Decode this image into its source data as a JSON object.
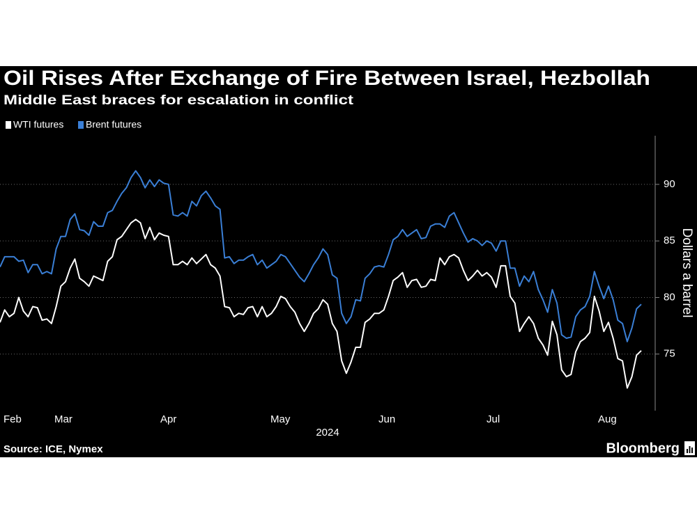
{
  "chart_data": {
    "type": "line",
    "title": "Oil Rises After Exchange of Fire Between Israel, Hezbollah",
    "subtitle": "Middle East braces for escalation in conflict",
    "y_label": "Dollars a barrel",
    "x_labels": [
      "Feb",
      "Mar",
      "Apr",
      "May",
      "Jun",
      "Jul",
      "Aug"
    ],
    "x_year": "2024",
    "source": "Source: ICE, Nymex",
    "brand": "Bloomberg",
    "ylim": [
      70,
      94.3
    ],
    "yticks": [
      75,
      80,
      85,
      90
    ],
    "grid": true,
    "series": [
      {
        "name": "WTI futures",
        "color": "#ffffff",
        "values": [
          77.8,
          78.9,
          78.3,
          78.6,
          80.0,
          78.8,
          78.3,
          79.2,
          79.1,
          78.0,
          78.1,
          77.7,
          79.2,
          81.0,
          81.4,
          82.6,
          83.4,
          81.7,
          81.4,
          81.0,
          81.9,
          81.7,
          81.5,
          83.2,
          83.6,
          85.1,
          85.4,
          86.0,
          86.6,
          86.9,
          86.6,
          85.2,
          86.2,
          85.1,
          85.7,
          85.5,
          85.4,
          82.9,
          82.9,
          83.2,
          82.9,
          83.5,
          83.0,
          83.4,
          83.8,
          82.9,
          82.6,
          81.9,
          79.2,
          79.1,
          78.3,
          78.6,
          78.5,
          79.1,
          79.2,
          78.3,
          79.2,
          78.3,
          78.6,
          79.2,
          80.1,
          79.9,
          79.2,
          78.7,
          77.7,
          77.0,
          77.7,
          78.6,
          79.0,
          79.8,
          79.4,
          77.7,
          77.0,
          74.4,
          73.3,
          74.3,
          75.6,
          75.6,
          77.8,
          78.1,
          78.6,
          78.6,
          78.9,
          80.1,
          81.5,
          81.8,
          82.2,
          80.9,
          81.5,
          81.6,
          80.9,
          81.0,
          81.6,
          81.5,
          83.5,
          82.9,
          83.6,
          83.8,
          83.5,
          82.4,
          81.5,
          81.9,
          82.4,
          81.9,
          82.2,
          81.8,
          80.9,
          82.8,
          82.8,
          80.1,
          79.5,
          77.0,
          77.7,
          78.3,
          77.7,
          76.4,
          75.8,
          74.9,
          77.9,
          76.7,
          73.6,
          73.0,
          73.2,
          75.2,
          76.1,
          76.4,
          76.9,
          80.1,
          78.8,
          77.0,
          77.8,
          76.4,
          74.6,
          74.4,
          72.0,
          73.0,
          74.9,
          75.3
        ]
      },
      {
        "name": "Brent futures",
        "color": "#3a7fd6",
        "values": [
          82.7,
          83.6,
          83.6,
          83.6,
          83.2,
          83.3,
          82.2,
          82.9,
          82.9,
          82.1,
          82.3,
          82.1,
          84.3,
          85.4,
          85.4,
          86.9,
          87.4,
          86.0,
          85.9,
          85.5,
          86.7,
          86.3,
          86.3,
          87.5,
          87.7,
          88.5,
          89.2,
          89.7,
          90.6,
          91.2,
          90.6,
          89.7,
          90.4,
          89.8,
          90.4,
          90.1,
          90.0,
          87.3,
          87.2,
          87.5,
          87.2,
          88.5,
          88.1,
          89.0,
          89.4,
          88.8,
          88.1,
          87.8,
          83.5,
          83.6,
          83.0,
          83.3,
          83.3,
          83.6,
          83.8,
          82.9,
          83.3,
          82.6,
          82.9,
          83.2,
          83.8,
          83.6,
          83.0,
          82.4,
          81.8,
          81.4,
          82.1,
          82.9,
          83.5,
          84.3,
          83.8,
          82.0,
          81.7,
          78.6,
          77.7,
          78.3,
          79.8,
          79.7,
          81.7,
          82.1,
          82.7,
          82.8,
          82.7,
          83.8,
          85.1,
          85.4,
          86.0,
          85.4,
          85.7,
          86.0,
          85.2,
          85.3,
          86.3,
          86.5,
          86.5,
          86.2,
          87.2,
          87.5,
          86.6,
          85.7,
          84.9,
          85.2,
          85.0,
          84.6,
          85.0,
          84.8,
          84.1,
          85.0,
          85.0,
          82.6,
          82.6,
          81.0,
          81.9,
          81.4,
          82.3,
          80.7,
          79.8,
          78.7,
          80.7,
          79.5,
          76.7,
          76.4,
          76.5,
          78.3,
          78.9,
          79.2,
          80.1,
          82.3,
          81.0,
          79.9,
          81.0,
          79.8,
          78.0,
          77.7,
          76.1,
          77.3,
          79.0,
          79.4
        ]
      }
    ]
  }
}
